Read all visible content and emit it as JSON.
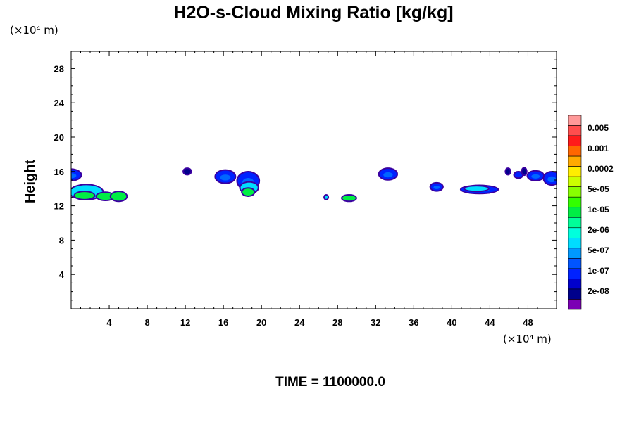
{
  "chart_data": {
    "type": "contour",
    "title": "H2O-s-Cloud Mixing Ratio [kg/kg]",
    "xlabel": "",
    "ylabel": "Height",
    "x_unit": "(×10⁴ m)",
    "y_unit": "(×10⁴ m)",
    "xlim": [
      0,
      51
    ],
    "ylim": [
      0,
      30
    ],
    "x_ticks": [
      4,
      8,
      12,
      16,
      20,
      24,
      28,
      32,
      36,
      40,
      44,
      48
    ],
    "y_ticks": [
      4,
      8,
      12,
      16,
      20,
      24,
      28
    ],
    "colorbar": {
      "labels": [
        "0.005",
        "0.001",
        "0.0002",
        "5e-05",
        "1e-05",
        "2e-06",
        "5e-07",
        "1e-07",
        "2e-08"
      ],
      "colors": [
        "#ff9999",
        "#ff4d4d",
        "#ff1a1a",
        "#ff6600",
        "#ffaa00",
        "#ffee00",
        "#ccff00",
        "#88ff00",
        "#33ff00",
        "#00ee44",
        "#00ff99",
        "#00ffdd",
        "#00ddff",
        "#0099ff",
        "#0055ff",
        "#0022ff",
        "#0000cc",
        "#00008b",
        "#7b00b4"
      ]
    },
    "cloud_regions": [
      {
        "x": 0.0,
        "y": 15.6,
        "rx": 1.0,
        "ry": 0.6,
        "level": "1e-07"
      },
      {
        "x": 1.6,
        "y": 13.6,
        "rx": 1.7,
        "ry": 0.8,
        "level": "5e-07"
      },
      {
        "x": 1.4,
        "y": 13.2,
        "rx": 1.0,
        "ry": 0.4,
        "level": "2e-06"
      },
      {
        "x": 3.6,
        "y": 13.1,
        "rx": 0.9,
        "ry": 0.4,
        "level": "2e-06"
      },
      {
        "x": 5.0,
        "y": 13.1,
        "rx": 0.8,
        "ry": 0.5,
        "level": "2e-06"
      },
      {
        "x": 12.2,
        "y": 16.0,
        "rx": 0.35,
        "ry": 0.3,
        "level": "2e-08"
      },
      {
        "x": 16.2,
        "y": 15.4,
        "rx": 1.0,
        "ry": 0.7,
        "level": "1e-07"
      },
      {
        "x": 18.6,
        "y": 14.9,
        "rx": 1.1,
        "ry": 1.0,
        "level": "1e-07"
      },
      {
        "x": 18.7,
        "y": 14.1,
        "rx": 0.9,
        "ry": 0.6,
        "level": "5e-07"
      },
      {
        "x": 18.6,
        "y": 13.6,
        "rx": 0.6,
        "ry": 0.4,
        "level": "2e-06"
      },
      {
        "x": 26.8,
        "y": 13.0,
        "rx": 0.15,
        "ry": 0.2,
        "level": "5e-07"
      },
      {
        "x": 29.2,
        "y": 12.9,
        "rx": 0.7,
        "ry": 0.3,
        "level": "2e-06"
      },
      {
        "x": 33.3,
        "y": 15.7,
        "rx": 0.9,
        "ry": 0.6,
        "level": "1e-07"
      },
      {
        "x": 38.4,
        "y": 14.2,
        "rx": 0.6,
        "ry": 0.4,
        "level": "1e-07"
      },
      {
        "x": 42.9,
        "y": 13.9,
        "rx": 1.9,
        "ry": 0.4,
        "level": "1e-07"
      },
      {
        "x": 42.6,
        "y": 14.0,
        "rx": 1.2,
        "ry": 0.25,
        "level": "5e-07"
      },
      {
        "x": 45.9,
        "y": 16.0,
        "rx": 0.2,
        "ry": 0.3,
        "level": "2e-08"
      },
      {
        "x": 47.0,
        "y": 15.6,
        "rx": 0.4,
        "ry": 0.3,
        "level": "1e-07"
      },
      {
        "x": 47.6,
        "y": 16.0,
        "rx": 0.2,
        "ry": 0.35,
        "level": "2e-08"
      },
      {
        "x": 48.8,
        "y": 15.5,
        "rx": 0.8,
        "ry": 0.5,
        "level": "1e-07"
      },
      {
        "x": 50.5,
        "y": 15.2,
        "rx": 0.8,
        "ry": 0.7,
        "level": "1e-07"
      }
    ]
  },
  "time_label": "TIME = 1100000.0"
}
